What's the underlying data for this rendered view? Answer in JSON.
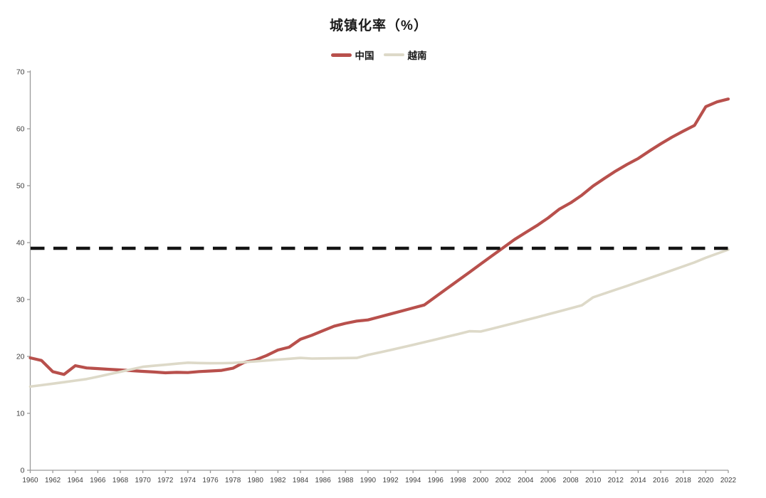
{
  "title": "城镇化率（%）",
  "legend": [
    {
      "label": "中国",
      "color": "#b8504c"
    },
    {
      "label": "越南",
      "color": "#ddd9c8"
    }
  ],
  "chart_data": {
    "type": "line",
    "title": "城镇化率（%）",
    "xlabel": "",
    "ylabel": "",
    "grid": false,
    "legend_position": "top",
    "axis_color": "#9b9b9b",
    "tick_label_color": "#3f3f3f",
    "x": [
      1960,
      1961,
      1962,
      1963,
      1964,
      1965,
      1966,
      1967,
      1968,
      1969,
      1970,
      1971,
      1972,
      1973,
      1974,
      1975,
      1976,
      1977,
      1978,
      1979,
      1980,
      1981,
      1982,
      1983,
      1984,
      1985,
      1986,
      1987,
      1988,
      1989,
      1990,
      1991,
      1992,
      1993,
      1994,
      1995,
      1996,
      1997,
      1998,
      1999,
      2000,
      2001,
      2002,
      2003,
      2004,
      2005,
      2006,
      2007,
      2008,
      2009,
      2010,
      2011,
      2012,
      2013,
      2014,
      2015,
      2016,
      2017,
      2018,
      2019,
      2020,
      2021,
      2022
    ],
    "series": [
      {
        "name": "中国",
        "color": "#b8504c",
        "values": [
          19.75,
          19.29,
          17.33,
          16.84,
          18.37,
          17.98,
          17.86,
          17.74,
          17.62,
          17.5,
          17.38,
          17.26,
          17.13,
          17.2,
          17.16,
          17.34,
          17.44,
          17.55,
          17.92,
          18.96,
          19.39,
          20.16,
          21.13,
          21.62,
          23.01,
          23.71,
          24.52,
          25.32,
          25.81,
          26.21,
          26.41,
          26.94,
          27.46,
          27.99,
          28.51,
          29.04,
          30.48,
          31.91,
          33.35,
          34.78,
          36.22,
          37.66,
          39.09,
          40.53,
          41.76,
          42.99,
          44.34,
          45.89,
          46.99,
          48.34,
          49.95,
          51.27,
          52.57,
          53.73,
          54.77,
          56.1,
          57.35,
          58.52,
          59.58,
          60.6,
          63.89,
          64.72,
          65.22
        ]
      },
      {
        "name": "越南",
        "color": "#ddd9c8",
        "values": [
          14.7,
          14.95,
          15.21,
          15.48,
          15.75,
          16.03,
          16.44,
          16.87,
          17.3,
          17.74,
          18.18,
          18.36,
          18.54,
          18.72,
          18.9,
          18.84,
          18.8,
          18.81,
          18.85,
          19.0,
          19.14,
          19.29,
          19.44,
          19.59,
          19.74,
          19.62,
          19.65,
          19.68,
          19.71,
          19.74,
          20.26,
          20.69,
          21.13,
          21.58,
          22.04,
          22.5,
          22.97,
          23.45,
          23.93,
          24.42,
          24.37,
          24.86,
          25.36,
          25.86,
          26.37,
          26.88,
          27.4,
          27.92,
          28.45,
          28.99,
          30.39,
          31.05,
          31.72,
          32.39,
          33.07,
          33.75,
          34.44,
          35.13,
          35.82,
          36.52,
          37.34,
          38.05,
          38.77
        ]
      }
    ],
    "reference_line": {
      "value": 39,
      "style": "dashed",
      "color": "#141414"
    },
    "xaxis": {
      "min": 1960,
      "max": 2022,
      "tick_interval": 2,
      "tick_labels": [
        1960,
        1962,
        1964,
        1966,
        1968,
        1970,
        1972,
        1974,
        1976,
        1978,
        1980,
        1982,
        1984,
        1986,
        1988,
        1990,
        1992,
        1994,
        1996,
        1998,
        2000,
        2002,
        2004,
        2006,
        2008,
        2010,
        2012,
        2014,
        2016,
        2018,
        2020,
        2022
      ]
    },
    "yaxis": {
      "min": 0,
      "max": 70,
      "tick_interval": 10,
      "ticks": [
        0,
        10,
        20,
        30,
        40,
        50,
        60,
        70
      ]
    },
    "ylim": [
      0,
      70
    ]
  }
}
